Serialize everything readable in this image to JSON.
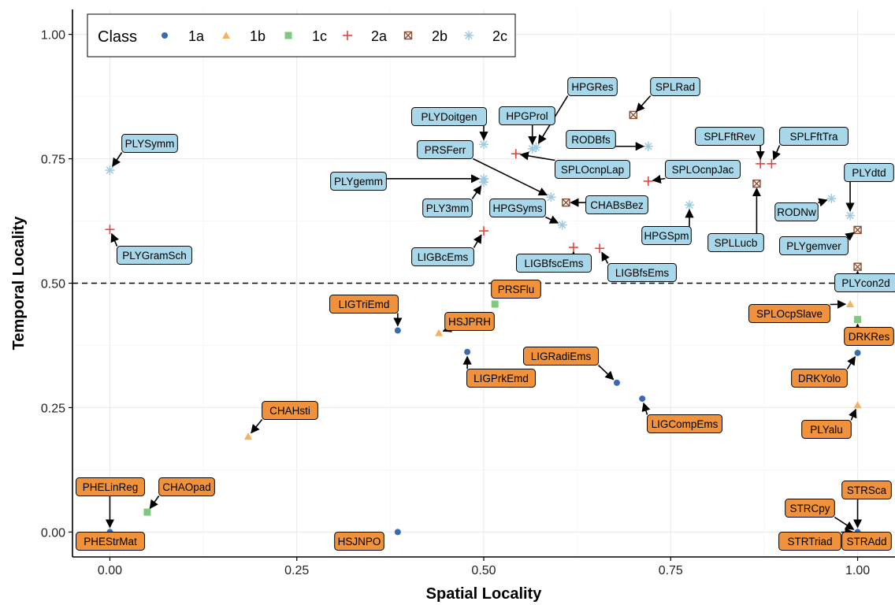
{
  "chart_data": {
    "type": "scatter",
    "title": "",
    "xlabel": "Spatial Locality",
    "ylabel": "Temporal Locality",
    "xlim": [
      -0.05,
      1.05
    ],
    "ylim": [
      -0.05,
      1.05
    ],
    "x_ticks": [
      "0.00",
      "0.25",
      "0.50",
      "0.75",
      "1.00"
    ],
    "y_ticks": [
      "0.00",
      "0.25",
      "0.50",
      "0.75",
      "1.00"
    ],
    "grid": true,
    "reference_line_y": 0.5,
    "legend": {
      "title": "Class",
      "placement": "top-left",
      "entries": [
        "1a",
        "1b",
        "1c",
        "2a",
        "2b",
        "2c"
      ]
    },
    "class_styles": {
      "1a": {
        "marker": "circle",
        "color": "#3a6bb0"
      },
      "1b": {
        "marker": "triangle",
        "color": "#f7b060"
      },
      "1c": {
        "marker": "square",
        "color": "#7fc97f"
      },
      "2a": {
        "marker": "plus",
        "color": "#e8413c"
      },
      "2b": {
        "marker": "boxed-x",
        "color": "#8c4a2f"
      },
      "2c": {
        "marker": "asterisk",
        "color": "#9ecae1"
      }
    },
    "label_colors": {
      "low": "#f0923b",
      "high": "#a7d7e8"
    },
    "points": [
      {
        "name": "PLYSymm",
        "cls": "2c",
        "x": 0.0,
        "y": 0.727
      },
      {
        "name": "PLYGramSch",
        "cls": "2a",
        "x": 0.0,
        "y": 0.608
      },
      {
        "name": "PLYDoitgen",
        "cls": "2c",
        "x": 0.5,
        "y": 0.779
      },
      {
        "name": "HPGRes",
        "cls": "2c",
        "x": 0.57,
        "y": 0.773
      },
      {
        "name": "HPGProl",
        "cls": "2c",
        "x": 0.565,
        "y": 0.77
      },
      {
        "name": "SPLRad",
        "cls": "2b",
        "x": 0.7,
        "y": 0.838
      },
      {
        "name": "PRSFerr",
        "cls": "2c",
        "x": 0.59,
        "y": 0.673
      },
      {
        "name": "PLYgemm",
        "cls": "2c",
        "x": 0.5,
        "y": 0.71
      },
      {
        "name": "PLY3mm",
        "cls": "2c",
        "x": 0.5,
        "y": 0.703
      },
      {
        "name": "SPLOcnpLap",
        "cls": "2a",
        "x": 0.543,
        "y": 0.76
      },
      {
        "name": "RODBfs",
        "cls": "2c",
        "x": 0.72,
        "y": 0.775
      },
      {
        "name": "SPLOcnpJac",
        "cls": "2a",
        "x": 0.72,
        "y": 0.705
      },
      {
        "name": "SPLFftRev",
        "cls": "2a",
        "x": 0.87,
        "y": 0.74
      },
      {
        "name": "SPLFftTra",
        "cls": "2a",
        "x": 0.885,
        "y": 0.74
      },
      {
        "name": "CHABsBez",
        "cls": "2b",
        "x": 0.61,
        "y": 0.662
      },
      {
        "name": "HPGSyms",
        "cls": "2c",
        "x": 0.605,
        "y": 0.617
      },
      {
        "name": "LIGBcEms",
        "cls": "2a",
        "x": 0.5,
        "y": 0.605
      },
      {
        "name": "LIGBfscEms",
        "cls": "2a",
        "x": 0.62,
        "y": 0.572
      },
      {
        "name": "LIGBfsEms",
        "cls": "2a",
        "x": 0.655,
        "y": 0.57
      },
      {
        "name": "HPGSpm",
        "cls": "2c",
        "x": 0.775,
        "y": 0.657
      },
      {
        "name": "SPLLucb",
        "cls": "2b",
        "x": 0.865,
        "y": 0.7
      },
      {
        "name": "RODNw",
        "cls": "2c",
        "x": 0.965,
        "y": 0.67
      },
      {
        "name": "PLYdtd",
        "cls": "2c",
        "x": 0.99,
        "y": 0.636
      },
      {
        "name": "PLYgemver",
        "cls": "2b",
        "x": 1.0,
        "y": 0.607
      },
      {
        "name": "PLYcon2d",
        "cls": "2b",
        "x": 1.0,
        "y": 0.533
      },
      {
        "name": "PRSFlu",
        "cls": "1c",
        "x": 0.515,
        "y": 0.458
      },
      {
        "name": "LIGTriEmd",
        "cls": "1a",
        "x": 0.385,
        "y": 0.405
      },
      {
        "name": "HSJPRH",
        "cls": "1b",
        "x": 0.44,
        "y": 0.4
      },
      {
        "name": "LIGPrkEmd",
        "cls": "1a",
        "x": 0.478,
        "y": 0.362
      },
      {
        "name": "LIGRadiEms",
        "cls": "1a",
        "x": 0.678,
        "y": 0.3
      },
      {
        "name": "LIGCompEms",
        "cls": "1a",
        "x": 0.712,
        "y": 0.268
      },
      {
        "name": "SPLOcpSlave",
        "cls": "1b",
        "x": 0.99,
        "y": 0.458
      },
      {
        "name": "DRKRes",
        "cls": "1c",
        "x": 1.0,
        "y": 0.427
      },
      {
        "name": "DRKYolo",
        "cls": "1a",
        "x": 1.0,
        "y": 0.36
      },
      {
        "name": "PLYalu",
        "cls": "1b",
        "x": 1.0,
        "y": 0.255
      },
      {
        "name": "CHAHsti",
        "cls": "1b",
        "x": 0.185,
        "y": 0.192
      },
      {
        "name": "CHAOpad",
        "cls": "1c",
        "x": 0.05,
        "y": 0.04
      },
      {
        "name": "PHELinReg",
        "cls": "1b",
        "x": 0.0,
        "y": 0.0
      },
      {
        "name": "PHEStrMat",
        "cls": "1a",
        "x": 0.0,
        "y": 0.0
      },
      {
        "name": "HSJNPO",
        "cls": "1a",
        "x": 0.385,
        "y": 0.0
      },
      {
        "name": "STRSca",
        "cls": "1a",
        "x": 1.0,
        "y": 0.0
      },
      {
        "name": "STRCpy",
        "cls": "1a",
        "x": 1.0,
        "y": 0.0
      },
      {
        "name": "STRTriad",
        "cls": "1a",
        "x": 1.0,
        "y": 0.0
      },
      {
        "name": "STRAdd",
        "cls": "1a",
        "x": 1.0,
        "y": 0.0
      }
    ]
  }
}
